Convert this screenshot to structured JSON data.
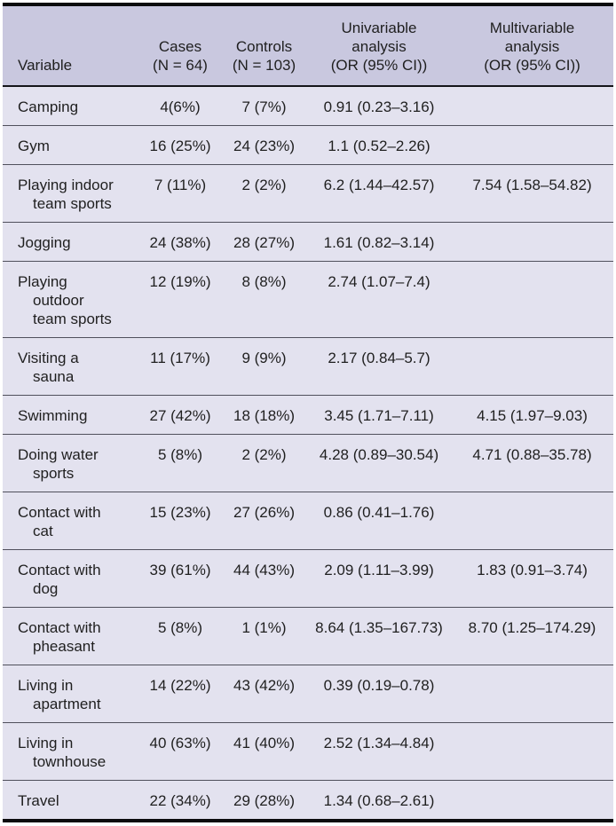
{
  "table": {
    "colors": {
      "header_bg": "#c9c8df",
      "body_bg": "#e3e2ef",
      "text": "#1f1f1f",
      "heavy_border": "#0b0b0d",
      "header_rule": "#15151a",
      "row_divider": "#50505c"
    },
    "columns": [
      {
        "id": "variable",
        "header_lines": [
          "Variable"
        ]
      },
      {
        "id": "cases",
        "header_lines": [
          "Cases",
          "(N = 64)"
        ]
      },
      {
        "id": "controls",
        "header_lines": [
          "Controls",
          "(N = 103)"
        ]
      },
      {
        "id": "univariable",
        "header_lines": [
          "Univariable",
          "analysis",
          "(OR (95% CI))"
        ]
      },
      {
        "id": "multivariable",
        "header_lines": [
          "Multivariable",
          "analysis",
          "(OR (95% CI))"
        ]
      }
    ],
    "rows": [
      {
        "variable_lines": [
          "Camping"
        ],
        "cases": "4(6%)",
        "controls": "7 (7%)",
        "univariable": "0.91 (0.23–3.16)",
        "multivariable": ""
      },
      {
        "variable_lines": [
          "Gym"
        ],
        "cases": "16 (25%)",
        "controls": "24 (23%)",
        "univariable": "1.1 (0.52–2.26)",
        "multivariable": ""
      },
      {
        "variable_lines": [
          "Playing indoor",
          "team sports"
        ],
        "cases": "7 (11%)",
        "controls": "2 (2%)",
        "univariable": "6.2 (1.44–42.57)",
        "multivariable": "7.54 (1.58–54.82)"
      },
      {
        "variable_lines": [
          "Jogging"
        ],
        "cases": "24 (38%)",
        "controls": "28 (27%)",
        "univariable": "1.61 (0.82–3.14)",
        "multivariable": ""
      },
      {
        "variable_lines": [
          "Playing",
          "outdoor",
          "team sports"
        ],
        "cases": "12 (19%)",
        "controls": "8 (8%)",
        "univariable": "2.74 (1.07–7.4)",
        "multivariable": ""
      },
      {
        "variable_lines": [
          "Visiting a",
          "sauna"
        ],
        "cases": "11 (17%)",
        "controls": "9 (9%)",
        "univariable": "2.17 (0.84–5.7)",
        "multivariable": ""
      },
      {
        "variable_lines": [
          "Swimming"
        ],
        "cases": "27 (42%)",
        "controls": "18 (18%)",
        "univariable": "3.45 (1.71–7.11)",
        "multivariable": "4.15 (1.97–9.03)"
      },
      {
        "variable_lines": [
          "Doing water",
          "sports"
        ],
        "cases": "5 (8%)",
        "controls": "2 (2%)",
        "univariable": "4.28 (0.89–30.54)",
        "multivariable": "4.71 (0.88–35.78)"
      },
      {
        "variable_lines": [
          "Contact with",
          "cat"
        ],
        "cases": "15 (23%)",
        "controls": "27 (26%)",
        "univariable": "0.86 (0.41–1.76)",
        "multivariable": ""
      },
      {
        "variable_lines": [
          "Contact with",
          "dog"
        ],
        "cases": "39 (61%)",
        "controls": "44 (43%)",
        "univariable": "2.09 (1.11–3.99)",
        "multivariable": "1.83 (0.91–3.74)"
      },
      {
        "variable_lines": [
          "Contact with",
          "pheasant"
        ],
        "cases": "5 (8%)",
        "controls": "1 (1%)",
        "univariable": "8.64 (1.35–167.73)",
        "multivariable": "8.70 (1.25–174.29)"
      },
      {
        "variable_lines": [
          "Living in",
          "apartment"
        ],
        "cases": "14 (22%)",
        "controls": "43 (42%)",
        "univariable": "0.39 (0.19–0.78)",
        "multivariable": ""
      },
      {
        "variable_lines": [
          "Living in",
          "townhouse"
        ],
        "cases": "40 (63%)",
        "controls": "41 (40%)",
        "univariable": "2.52 (1.34–4.84)",
        "multivariable": ""
      },
      {
        "variable_lines": [
          "Travel"
        ],
        "cases": "22 (34%)",
        "controls": "29 (28%)",
        "univariable": "1.34 (0.68–2.61)",
        "multivariable": ""
      }
    ]
  }
}
